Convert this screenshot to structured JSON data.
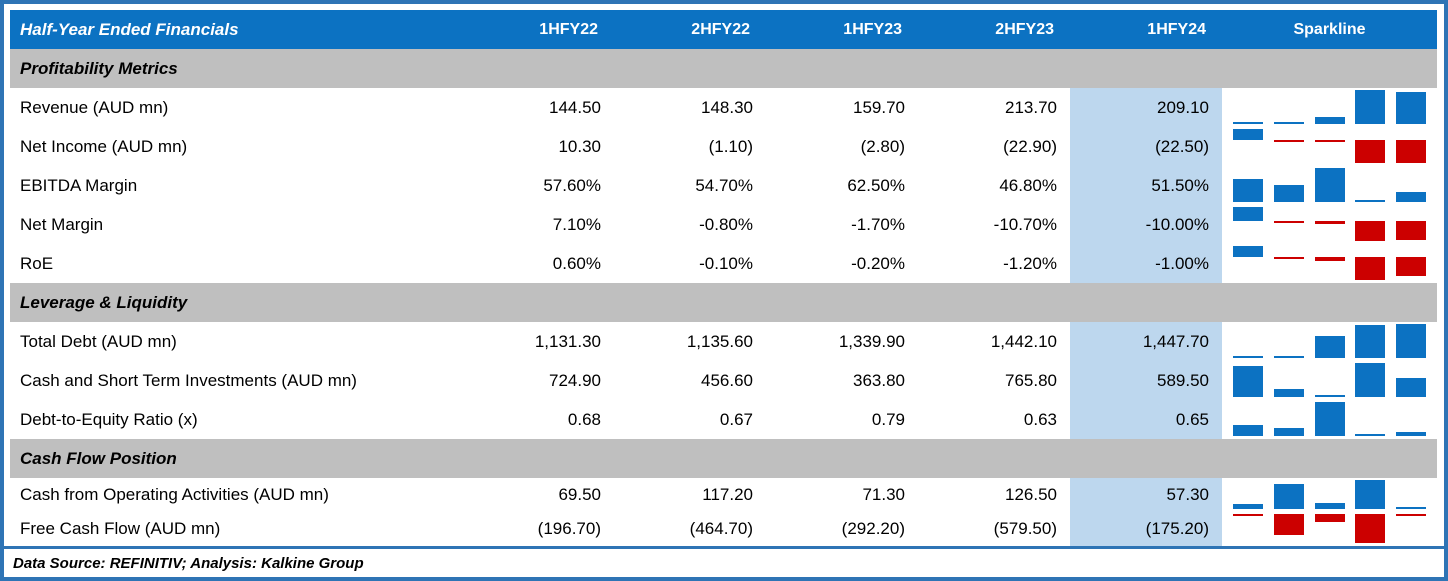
{
  "header": {
    "title": "Half-Year Ended Financials",
    "columns": [
      "1HFY22",
      "2HFY22",
      "1HFY23",
      "2HFY23",
      "1HFY24"
    ],
    "sparkline_label": "Sparkline",
    "highlight_column": "1HFY24"
  },
  "colors": {
    "header_bg": "#0c72c2",
    "section_bg": "#bfbfbf",
    "highlight_bg": "#bdd7ee",
    "frame_blue": "#2e74b5",
    "spark_positive": "#0c72c2",
    "spark_negative": "#cc0000"
  },
  "footer": {
    "text": "Data Source: REFINITIV; Analysis: Kalkine Group"
  },
  "chart_data": {
    "type": "table",
    "title": "Half-Year Ended Financials",
    "categories": [
      "1HFY22",
      "2HFY22",
      "1HFY23",
      "2HFY23",
      "1HFY24"
    ],
    "highlight_column": "1HFY24",
    "sparkline_style": {
      "type": "bar",
      "positive_color": "#0c72c2",
      "negative_color": "#cc0000"
    },
    "sections": [
      {
        "title": "Profitability Metrics",
        "rows": [
          {
            "label": "Revenue (AUD mn)",
            "values": [
              "144.50",
              "148.30",
              "159.70",
              "213.70",
              "209.10"
            ],
            "numeric": [
              144.5,
              148.3,
              159.7,
              213.7,
              209.1
            ]
          },
          {
            "label": "Net Income (AUD mn)",
            "values": [
              "10.30",
              "(1.10)",
              "(2.80)",
              "(22.90)",
              "(22.50)"
            ],
            "numeric": [
              10.3,
              -1.1,
              -2.8,
              -22.9,
              -22.5
            ]
          },
          {
            "label": "EBITDA Margin",
            "values": [
              "57.60%",
              "54.70%",
              "62.50%",
              "46.80%",
              "51.50%"
            ],
            "numeric": [
              57.6,
              54.7,
              62.5,
              46.8,
              51.5
            ]
          },
          {
            "label": "Net Margin",
            "values": [
              "7.10%",
              "-0.80%",
              "-1.70%",
              "-10.70%",
              "-10.00%"
            ],
            "numeric": [
              7.1,
              -0.8,
              -1.7,
              -10.7,
              -10.0
            ]
          },
          {
            "label": "RoE",
            "values": [
              "0.60%",
              "-0.10%",
              "-0.20%",
              "-1.20%",
              "-1.00%"
            ],
            "numeric": [
              0.6,
              -0.1,
              -0.2,
              -1.2,
              -1.0
            ]
          }
        ]
      },
      {
        "title": "Leverage & Liquidity",
        "rows": [
          {
            "label": "Total Debt (AUD mn)",
            "values": [
              "1,131.30",
              "1,135.60",
              "1,339.90",
              "1,442.10",
              "1,447.70"
            ],
            "numeric": [
              1131.3,
              1135.6,
              1339.9,
              1442.1,
              1447.7
            ]
          },
          {
            "label": "Cash and Short Term Investments (AUD mn)",
            "values": [
              "724.90",
              "456.60",
              "363.80",
              "765.80",
              "589.50"
            ],
            "numeric": [
              724.9,
              456.6,
              363.8,
              765.8,
              589.5
            ]
          },
          {
            "label": "Debt-to-Equity Ratio (x)",
            "values": [
              "0.68",
              "0.67",
              "0.79",
              "0.63",
              "0.65"
            ],
            "numeric": [
              0.68,
              0.67,
              0.79,
              0.63,
              0.65
            ]
          }
        ]
      },
      {
        "title": "Cash Flow Position",
        "rows": [
          {
            "label": "Cash from Operating Activities (AUD mn)",
            "values": [
              "69.50",
              "117.20",
              "71.30",
              "126.50",
              "57.30"
            ],
            "numeric": [
              69.5,
              117.2,
              71.3,
              126.5,
              57.3
            ]
          },
          {
            "label": "Free Cash Flow (AUD mn)",
            "values": [
              "(196.70)",
              "(464.70)",
              "(292.20)",
              "(579.50)",
              "(175.20)"
            ],
            "numeric": [
              -196.7,
              -464.7,
              -292.2,
              -579.5,
              -175.2
            ]
          }
        ]
      }
    ]
  }
}
